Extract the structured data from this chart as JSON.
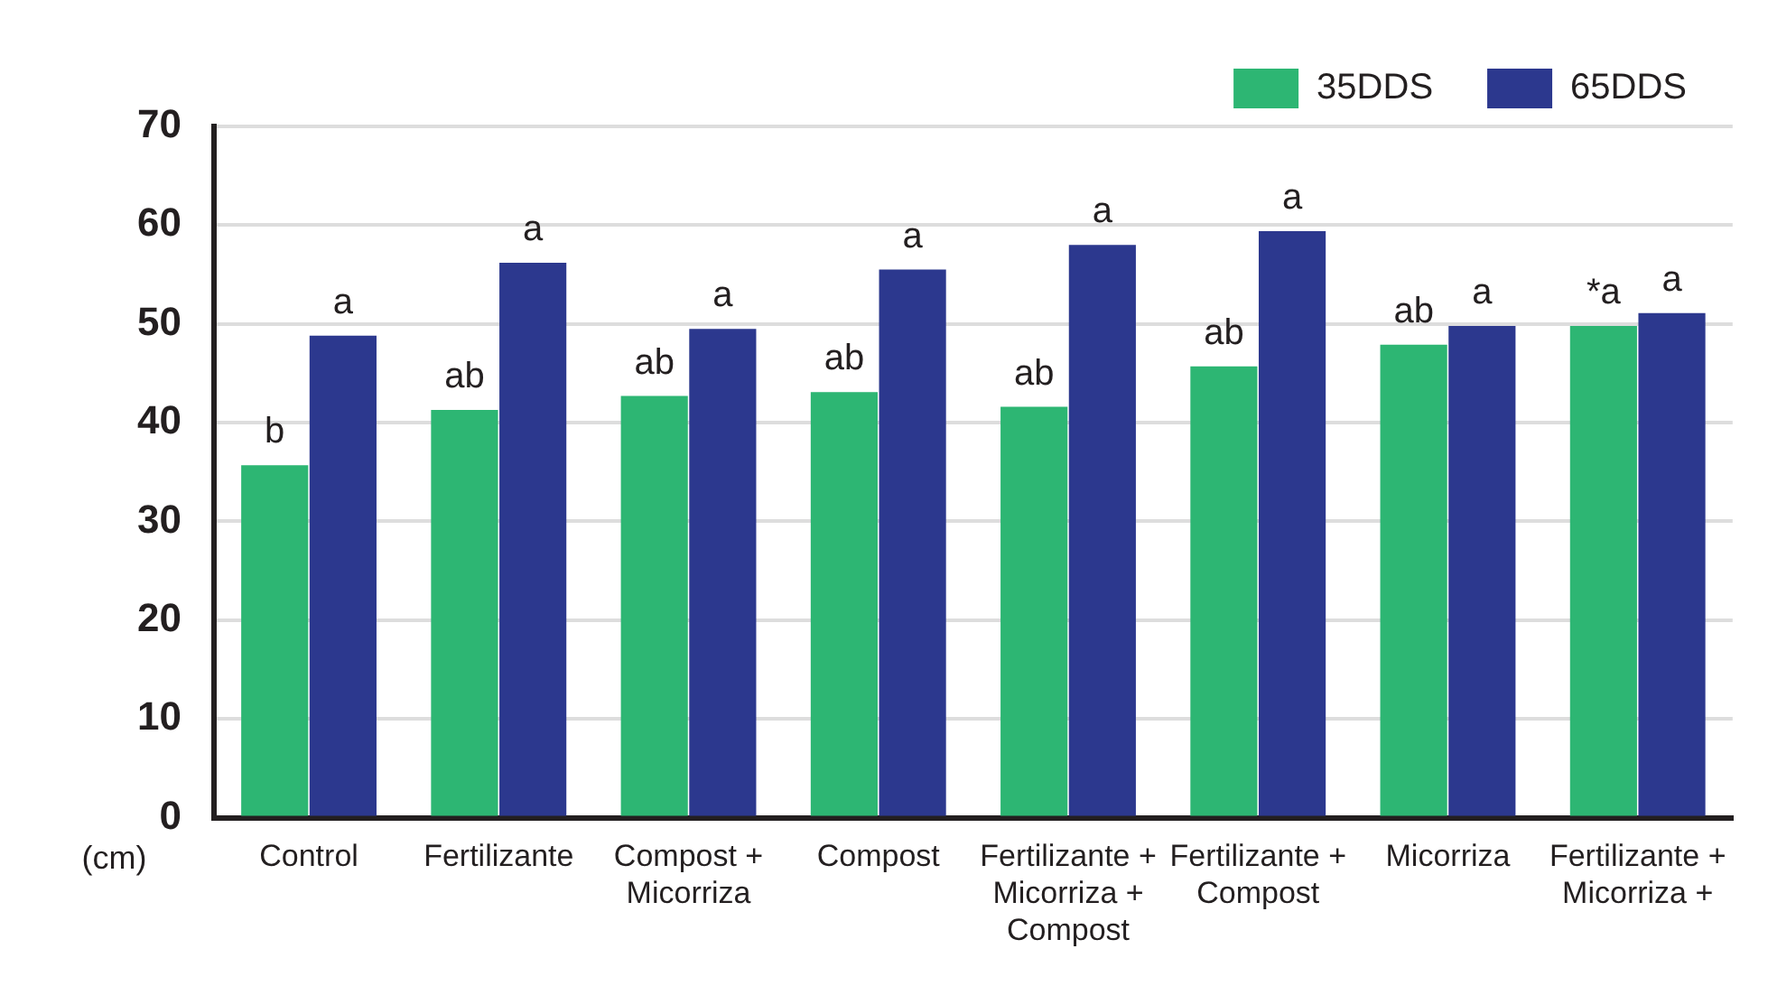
{
  "chart_data": {
    "type": "bar",
    "ylabel": "(cm)",
    "categories": [
      "Control",
      "Fertilizante",
      "Compost + Micorriza",
      "Compost",
      "Fertilizante + Micorriza + Compost",
      "Fertilizante + Compost",
      "Micorriza",
      "Fertilizante + Micorriza +"
    ],
    "series": [
      {
        "name": "35DDS",
        "color": "#2db673",
        "values": [
          35.7,
          41.3,
          42.7,
          43.1,
          41.6,
          45.7,
          47.9,
          49.8
        ],
        "value_labels": [
          "b",
          "ab",
          "ab",
          "ab",
          "ab",
          "ab",
          "ab",
          "*a"
        ]
      },
      {
        "name": "65DDS",
        "color": "#2c388e",
        "values": [
          48.8,
          56.2,
          49.5,
          55.5,
          58.0,
          59.4,
          49.8,
          51.1
        ],
        "value_labels": [
          "a",
          "a",
          "a",
          "a",
          "a",
          "a",
          "a",
          "a"
        ]
      }
    ],
    "ylim": [
      0,
      70
    ],
    "yticks": [
      0,
      10,
      20,
      30,
      40,
      50,
      60,
      70
    ],
    "grid": "y",
    "legend": "top"
  }
}
